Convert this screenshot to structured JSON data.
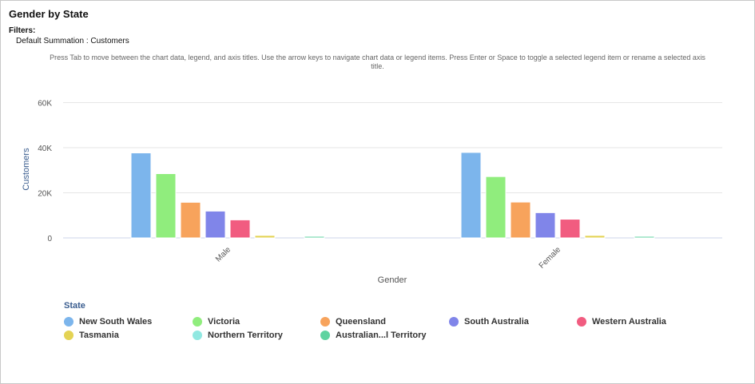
{
  "header": {
    "title": "Gender by State",
    "filters_label": "Filters:",
    "filter_name": "Default Summation",
    "filter_value": ": Customers"
  },
  "hint": {
    "line1": "Press Tab to move between the chart data, legend, and axis titles. Use the arrow keys to navigate chart data or legend items. Press Enter or Space to toggle a selected legend item or rename a selected axis",
    "line2": "title."
  },
  "chart_data": {
    "type": "bar",
    "xlabel": "Gender",
    "ylabel": "Customers",
    "categories": [
      "Male",
      "Female"
    ],
    "ylim": [
      0,
      60000
    ],
    "yticks": [
      {
        "v": 0,
        "label": "0"
      },
      {
        "v": 20000,
        "label": "20K"
      },
      {
        "v": 40000,
        "label": "40K"
      },
      {
        "v": 60000,
        "label": "60K"
      }
    ],
    "grid": true,
    "legend_title": "State",
    "legend_position": "bottom",
    "series": [
      {
        "name": "New South Wales",
        "color": "#7cb5ec",
        "values": [
          37700,
          37900
        ]
      },
      {
        "name": "Victoria",
        "color": "#90ed7d",
        "values": [
          28500,
          27200
        ]
      },
      {
        "name": "Queensland",
        "color": "#f7a35c",
        "values": [
          15800,
          15900
        ]
      },
      {
        "name": "South Australia",
        "color": "#8085e9",
        "values": [
          11900,
          11200
        ]
      },
      {
        "name": "Western Australia",
        "color": "#f15c80",
        "values": [
          8000,
          8300
        ]
      },
      {
        "name": "Tasmania",
        "color": "#e4d354",
        "values": [
          1100,
          1100
        ]
      },
      {
        "name": "Northern Territory",
        "color": "#91e8e1",
        "values": [
          0,
          0
        ]
      },
      {
        "name": "Australian...l Territory",
        "color": "#5fd3a0",
        "values": [
          700,
          700
        ]
      }
    ]
  }
}
